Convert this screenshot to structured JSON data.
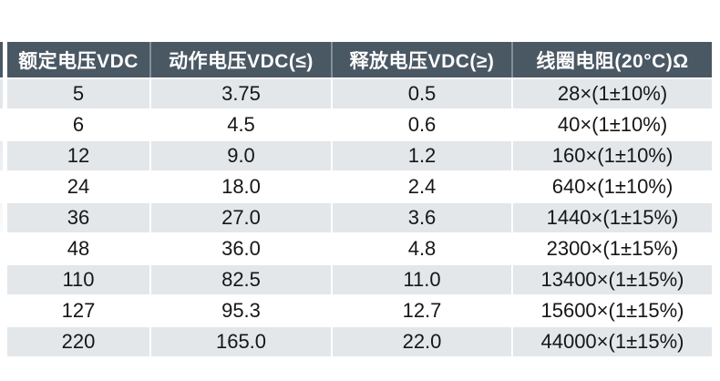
{
  "theme": {
    "header_bg": "#4a5864",
    "header_text": "#ffffff",
    "header_divider": "rgba(255,255,255,0.33)",
    "row_alt_bg": "#e3e7ea",
    "row_bg": "#ffffff",
    "body_text": "#161616",
    "page_bg": "#ffffff"
  },
  "table": {
    "columns": [
      {
        "label": "额定电压VDC"
      },
      {
        "label": "动作电压VDC(≤)"
      },
      {
        "label": "释放电压VDC(≥)"
      },
      {
        "label": "线圈电阻(20°C)Ω"
      }
    ],
    "rows": [
      [
        "5",
        "3.75",
        "0.5",
        "28×(1±10%)"
      ],
      [
        "6",
        "4.5",
        "0.6",
        "40×(1±10%)"
      ],
      [
        "12",
        "9.0",
        "1.2",
        "160×(1±10%)"
      ],
      [
        "24",
        "18.0",
        "2.4",
        "640×(1±10%)"
      ],
      [
        "36",
        "27.0",
        "3.6",
        "1440×(1±15%)"
      ],
      [
        "48",
        "36.0",
        "4.8",
        "2300×(1±15%)"
      ],
      [
        "110",
        "82.5",
        "11.0",
        "13400×(1±15%)"
      ],
      [
        "127",
        "95.3",
        "12.7",
        "15600×(1±15%)"
      ],
      [
        "220",
        "165.0",
        "22.0",
        "44000×(1±15%)"
      ]
    ]
  }
}
